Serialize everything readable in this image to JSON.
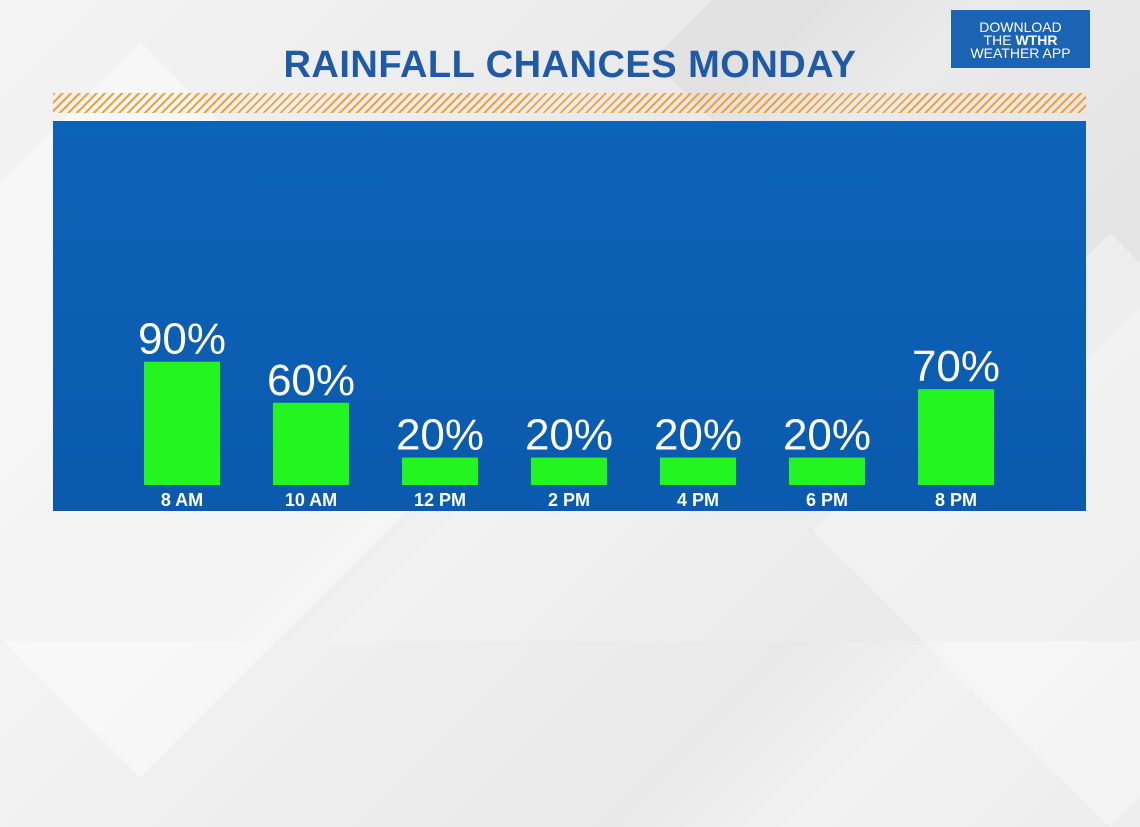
{
  "title": "RAINFALL CHANCES MONDAY",
  "badge": {
    "line1": "DOWNLOAD",
    "line2_pre": "THE ",
    "line2_brand": "WTHR",
    "line3": "WEATHER APP"
  },
  "colors": {
    "title": "#1e5aa6",
    "panel": "#0d63b8",
    "bar": "#22f51f",
    "stripe": "#f2a23a",
    "label": "#ffffff"
  },
  "chart_data": {
    "type": "bar",
    "categories": [
      "8 AM",
      "10 AM",
      "12 PM",
      "2 PM",
      "4 PM",
      "6 PM",
      "8 PM"
    ],
    "values": [
      90,
      60,
      20,
      20,
      20,
      20,
      70
    ],
    "value_labels": [
      "90%",
      "60%",
      "20%",
      "20%",
      "20%",
      "20%",
      "70%"
    ],
    "title": "RAINFALL CHANCES MONDAY",
    "xlabel": "",
    "ylabel": "",
    "ylim": [
      0,
      100
    ],
    "grid": false,
    "legend": "none"
  }
}
